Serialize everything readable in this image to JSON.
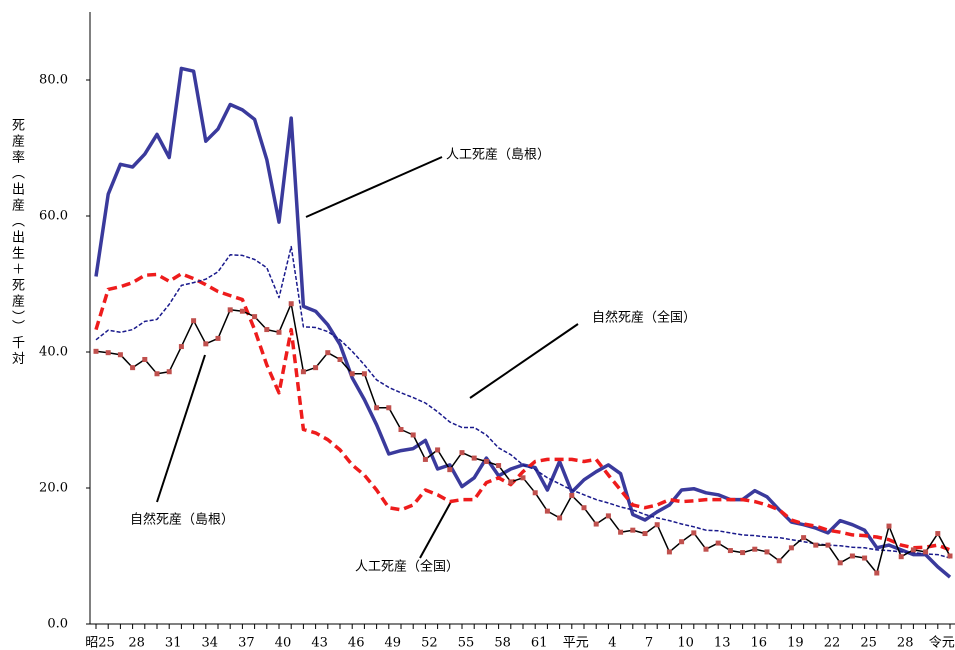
{
  "chart_data": {
    "type": "line",
    "ylabel": "死産率（出産（出生＋死産））千対",
    "categories": [
      "昭25",
      null,
      null,
      "28",
      null,
      null,
      "31",
      null,
      null,
      "34",
      null,
      null,
      "37",
      null,
      null,
      "40",
      null,
      null,
      "43",
      null,
      null,
      "46",
      null,
      null,
      "49",
      null,
      null,
      "52",
      null,
      null,
      "55",
      null,
      null,
      "58",
      null,
      null,
      "61",
      null,
      null,
      "平元",
      null,
      null,
      "4",
      null,
      null,
      "7",
      null,
      null,
      "10",
      null,
      null,
      "13",
      null,
      null,
      "16",
      null,
      null,
      "19",
      null,
      null,
      "22",
      null,
      null,
      "25",
      null,
      null,
      "28",
      null,
      null,
      "令元",
      null
    ],
    "ylim": [
      0,
      90
    ],
    "yticks": [
      {
        "value": 0,
        "label": "0.0"
      },
      {
        "value": 20,
        "label": "20.0"
      },
      {
        "value": 40,
        "label": "40.0"
      },
      {
        "value": 60,
        "label": "60.0"
      },
      {
        "value": 80,
        "label": "80.0"
      }
    ],
    "series": [
      {
        "name": "人工死産（島根）",
        "color": "#3a3a9c",
        "style": "solid",
        "values": [
          51.1,
          63.2,
          67.6,
          67.2,
          69.1,
          72.0,
          68.6,
          81.7,
          81.3,
          71.0,
          72.8,
          76.4,
          75.6,
          74.2,
          68.3,
          59.1,
          74.4,
          46.7,
          46.0,
          44.0,
          41.1,
          36.2,
          33.0,
          29.3,
          25.0,
          25.5,
          25.8,
          27.0,
          22.8,
          23.4,
          20.2,
          21.5,
          24.4,
          21.8,
          22.8,
          23.4,
          23.0,
          19.7,
          23.9,
          19.4,
          21.2,
          22.4,
          23.4,
          22.1,
          16.1,
          15.3,
          16.5,
          17.5,
          19.7,
          19.9,
          19.3,
          19.0,
          18.3,
          18.3,
          19.6,
          18.7,
          16.8,
          15.0,
          14.6,
          14.1,
          13.4,
          15.2,
          14.6,
          13.8,
          11.2,
          11.6,
          10.9,
          10.2,
          10.2,
          8.4,
          6.9
        ]
      },
      {
        "name": "人工死産（全国）",
        "color": "#ee1c1c",
        "style": "dashed",
        "values": [
          43.3,
          49.2,
          49.6,
          50.2,
          51.3,
          51.4,
          50.4,
          51.5,
          50.8,
          49.9,
          48.9,
          48.3,
          47.7,
          43.3,
          38.1,
          34.0,
          43.3,
          28.6,
          28.1,
          27.1,
          25.6,
          23.4,
          21.9,
          19.7,
          17.1,
          16.8,
          17.5,
          19.7,
          19.0,
          18.0,
          18.3,
          18.3,
          20.8,
          21.5,
          20.5,
          22.4,
          23.9,
          24.2,
          24.2,
          24.2,
          23.9,
          24.2,
          21.9,
          19.7,
          17.5,
          17.1,
          17.5,
          18.3,
          18.0,
          18.1,
          18.3,
          18.3,
          18.3,
          18.3,
          18.0,
          17.5,
          16.8,
          15.3,
          14.7,
          14.4,
          13.8,
          13.5,
          13.1,
          13.0,
          12.8,
          12.4,
          11.6,
          11.2,
          11.3,
          11.6,
          10.9
        ]
      },
      {
        "name": "自然死産（全国）",
        "color": "#1a1a8c",
        "style": "dotted",
        "values": [
          41.8,
          43.2,
          42.9,
          43.3,
          44.5,
          44.8,
          47.0,
          49.8,
          50.2,
          50.7,
          51.8,
          54.3,
          54.2,
          53.6,
          52.4,
          48.0,
          55.5,
          43.7,
          43.6,
          43.0,
          41.8,
          40.1,
          38.1,
          35.9,
          34.8,
          34.0,
          33.3,
          32.5,
          31.2,
          29.7,
          28.9,
          28.9,
          27.8,
          25.9,
          24.9,
          23.4,
          22.7,
          21.5,
          20.6,
          19.7,
          19.0,
          18.3,
          17.8,
          17.2,
          16.8,
          16.1,
          15.6,
          15.2,
          14.7,
          14.3,
          13.8,
          13.7,
          13.4,
          13.1,
          13.0,
          12.8,
          12.7,
          12.4,
          12.1,
          11.8,
          11.6,
          11.5,
          11.3,
          11.2,
          10.9,
          10.8,
          10.6,
          10.5,
          10.3,
          10.2,
          9.7
        ]
      },
      {
        "name": "自然死産（島根）",
        "color": "#000000",
        "marker_color": "#c0504d",
        "style": "marker",
        "values": [
          40.1,
          39.9,
          39.6,
          37.7,
          38.9,
          36.8,
          37.1,
          40.8,
          44.6,
          41.2,
          42.0,
          46.2,
          46.0,
          45.2,
          43.3,
          42.9,
          47.1,
          37.1,
          37.7,
          39.9,
          38.9,
          36.8,
          36.8,
          31.8,
          31.8,
          28.6,
          27.8,
          24.2,
          25.6,
          22.7,
          25.2,
          24.4,
          23.9,
          23.3,
          20.9,
          21.5,
          19.3,
          16.6,
          15.6,
          18.9,
          17.1,
          14.7,
          15.9,
          13.5,
          13.8,
          13.3,
          14.6,
          10.6,
          12.1,
          13.4,
          11.0,
          11.9,
          10.8,
          10.5,
          11.0,
          10.6,
          9.3,
          11.2,
          12.7,
          11.6,
          11.6,
          9.0,
          10.0,
          9.7,
          7.5,
          14.4,
          9.9,
          10.9,
          10.6,
          13.3,
          10.0
        ]
      }
    ]
  }
}
